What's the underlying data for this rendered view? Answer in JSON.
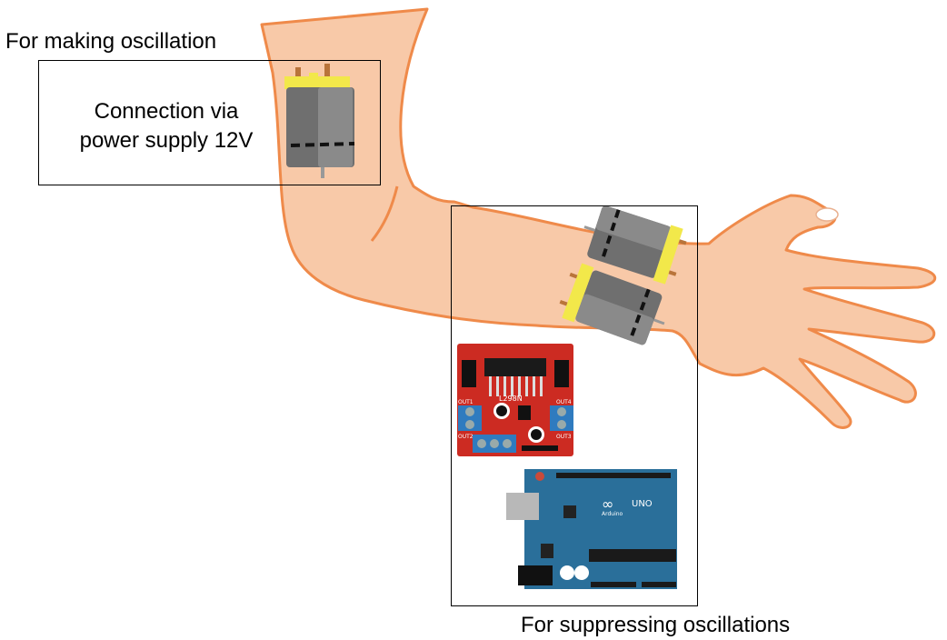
{
  "labels": {
    "top_heading": "For making oscillation",
    "box_text_line1": "Connection via",
    "box_text_line2": "power supply 12V",
    "bottom_heading": "For suppressing oscillations"
  },
  "components": {
    "driver_chip": "L298N",
    "driver_out1": "OUT1",
    "driver_out2": "OUT2",
    "driver_out3": "OUT3",
    "driver_out4": "OUT4",
    "arduino_brand": "Arduino",
    "arduino_model": "UNO"
  },
  "colors": {
    "skin": "#f8c9a8",
    "skin_outline": "#ef8a4a",
    "motor_body": "#6f6f6f",
    "motor_cap": "#f2e84a",
    "driver_board": "#cc2b22",
    "arduino_board": "#2a6f9a"
  }
}
